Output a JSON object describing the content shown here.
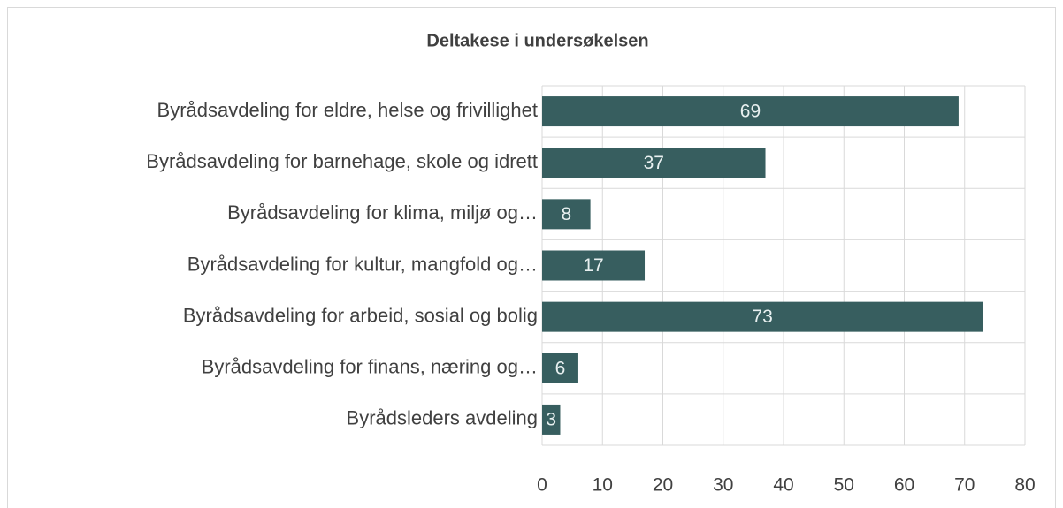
{
  "chart_data": {
    "type": "bar",
    "orientation": "horizontal",
    "title": "Deltakese i undersøkelsen",
    "categories": [
      "Byrådsavdeling for eldre, helse og frivillighet",
      "Byrådsavdeling for barnehage, skole og idrett",
      "Byrådsavdeling for klima, miljø og…",
      "Byrådsavdeling for kultur, mangfold og…",
      "Byrådsavdeling for arbeid, sosial og bolig",
      "Byrådsavdeling for finans, næring og…",
      "Byrådsleders avdeling"
    ],
    "values": [
      69,
      37,
      8,
      17,
      73,
      6,
      3
    ],
    "color": "#375e5f",
    "xlim": [
      0,
      80
    ],
    "xticks": [
      0,
      10,
      20,
      30,
      40,
      50,
      60,
      70,
      80
    ],
    "grid": true
  }
}
